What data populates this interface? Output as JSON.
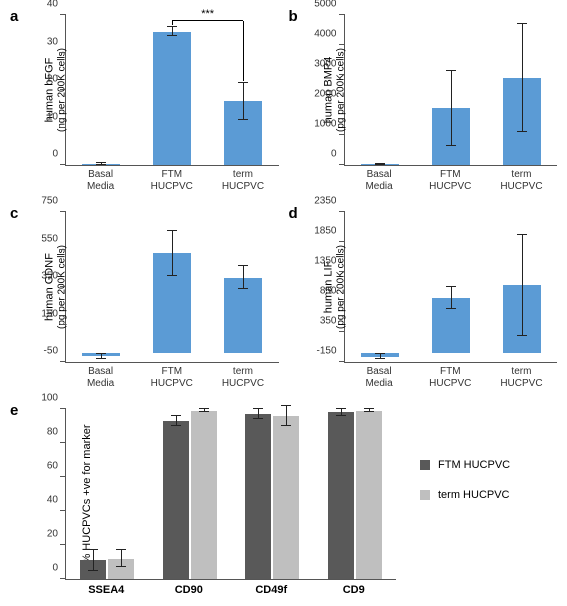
{
  "colors": {
    "bar_blue": "#5b9bd5",
    "bar_dark": "#595959",
    "bar_light": "#bfbfbf",
    "axis": "#555555",
    "err": "#222222",
    "bg": "#ffffff"
  },
  "panel_a": {
    "label": "a",
    "ylabel_line1": "human bFGF",
    "ylabel_line2": "(ng per 200K cells)",
    "ylim": [
      0,
      40
    ],
    "ytick_step": 10,
    "categories": [
      "Basal\nMedia",
      "FTM\nHUCPVC",
      "term\nHUCPVC"
    ],
    "values": [
      0.3,
      35.5,
      17
    ],
    "err": [
      0.2,
      1.2,
      5
    ],
    "bar_color": "#5b9bd5",
    "sig": {
      "from": 1,
      "to": 2,
      "text": "***"
    }
  },
  "panel_b": {
    "label": "b",
    "ylabel_line1": "human BMP4",
    "ylabel_line2": "(pg per 200K cells)",
    "ylim": [
      0,
      5000
    ],
    "ytick_step": 1000,
    "categories": [
      "Basal\nMedia",
      "FTM\nHUCPVC",
      "term\nHUCPVC"
    ],
    "values": [
      20,
      1900,
      2900
    ],
    "err": [
      15,
      1250,
      1800
    ],
    "bar_color": "#5b9bd5"
  },
  "panel_c": {
    "label": "c",
    "ylabel_line1": "human GDNF",
    "ylabel_line2": "(pg per 200K cells)",
    "ylim": [
      -50,
      750
    ],
    "ytick_step": 200,
    "ytick_start": -50,
    "categories": [
      "Basal\nMedia",
      "FTM\nHUCPVC",
      "term\nHUCPVC"
    ],
    "values": [
      -20,
      530,
      400
    ],
    "err": [
      15,
      120,
      60
    ],
    "bar_color": "#5b9bd5"
  },
  "panel_d": {
    "label": "d",
    "ylabel_line1": "human LIF",
    "ylabel_line2": "(pg per 200K cells)",
    "ylim": [
      -150,
      2350
    ],
    "ytick_step": 500,
    "ytick_start": -150,
    "categories": [
      "Basal\nMedia",
      "FTM\nHUCPVC",
      "term\nHUCPVC"
    ],
    "values": [
      -60,
      920,
      1130
    ],
    "err": [
      40,
      180,
      840
    ],
    "bar_color": "#5b9bd5"
  },
  "panel_e": {
    "label": "e",
    "ylabel": "% HUCPVCs +ve for marker",
    "ylim": [
      0,
      100
    ],
    "ytick_step": 20,
    "categories": [
      "SSEA4",
      "CD90",
      "CD49f",
      "CD9"
    ],
    "series": [
      {
        "name": "FTM HUCPVC",
        "color": "#595959",
        "values": [
          11,
          93,
          97,
          98
        ],
        "err": [
          6,
          3,
          3,
          2
        ]
      },
      {
        "name": "term HUCPVC",
        "color": "#bfbfbf",
        "values": [
          12,
          99,
          96,
          99
        ],
        "err": [
          5,
          1,
          6,
          1
        ]
      }
    ]
  }
}
